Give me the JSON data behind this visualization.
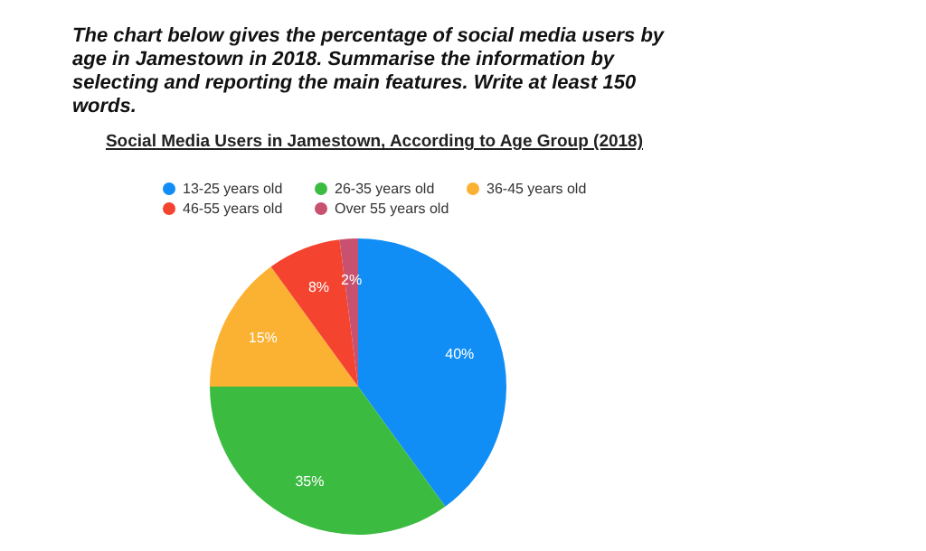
{
  "chart_data": {
    "type": "pie",
    "title": "The chart below gives the percentage of social media users by age in Jamestown in 2018. Summarise the information by selecting and reporting the main features. Write at least 150 words.",
    "subtitle": "Social Media Users in Jamestown, According to Age Group (2018)",
    "categories": [
      "13-25 years old",
      "26-35 years old",
      "36-45 years old",
      "46-55 years old",
      "Over 55 years old"
    ],
    "values": [
      40,
      35,
      15,
      8,
      2
    ],
    "colors": [
      "#108ef5",
      "#3bbc41",
      "#fbb131",
      "#f4432f",
      "#c8516f"
    ],
    "value_labels": [
      "40%",
      "35%",
      "15%",
      "8%",
      "2%"
    ],
    "legend": "top"
  }
}
